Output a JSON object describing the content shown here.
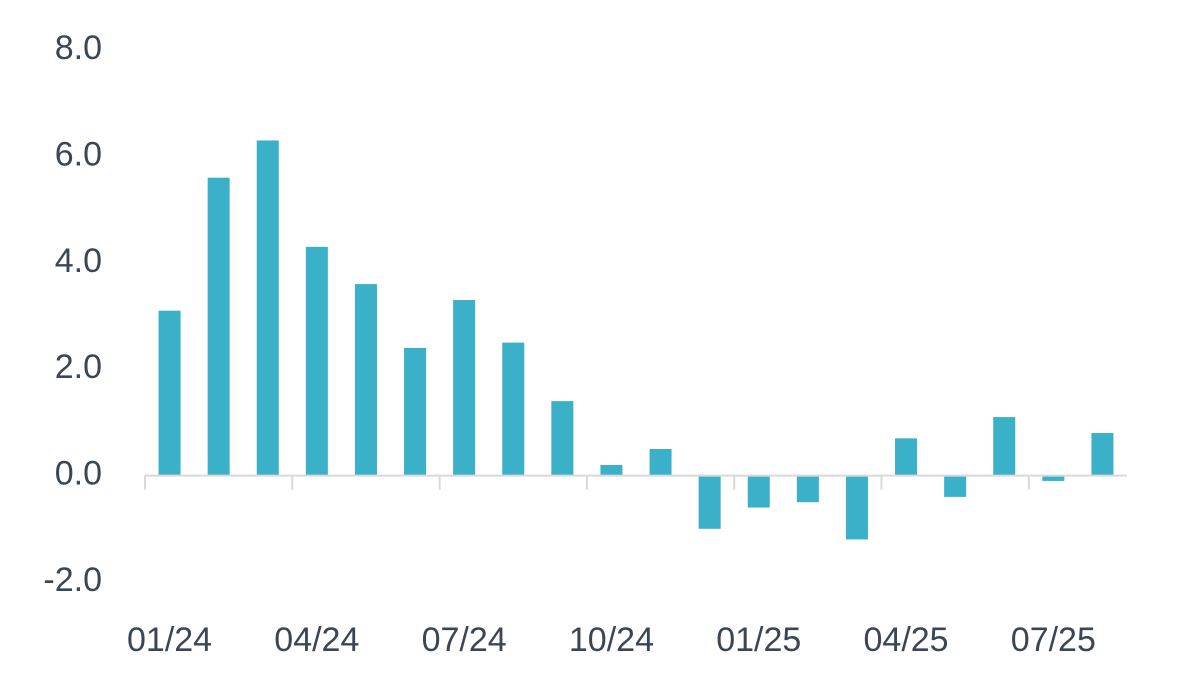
{
  "chart_data": {
    "type": "bar",
    "categories": [
      "01/24",
      null,
      null,
      "04/24",
      null,
      null,
      "07/24",
      null,
      null,
      "10/24",
      null,
      null,
      "01/25",
      null,
      null,
      "04/25",
      null,
      null,
      "07/25",
      null
    ],
    "values": [
      3.1,
      5.6,
      6.3,
      4.3,
      3.6,
      2.4,
      3.3,
      2.5,
      1.4,
      0.2,
      0.5,
      -1.0,
      -0.6,
      -0.5,
      -1.2,
      0.7,
      -0.4,
      1.1,
      -0.1,
      0.8
    ],
    "color": "#3ab0c9",
    "ylim": [
      -2,
      8
    ],
    "yticks": [
      {
        "value": -2,
        "label": "-2.0"
      },
      {
        "value": 0,
        "label": "0.0"
      },
      {
        "value": 2,
        "label": "2.0"
      },
      {
        "value": 4,
        "label": "4.0"
      },
      {
        "value": 6,
        "label": "6.0"
      },
      {
        "value": 8,
        "label": "8.0"
      }
    ],
    "grid": false
  }
}
